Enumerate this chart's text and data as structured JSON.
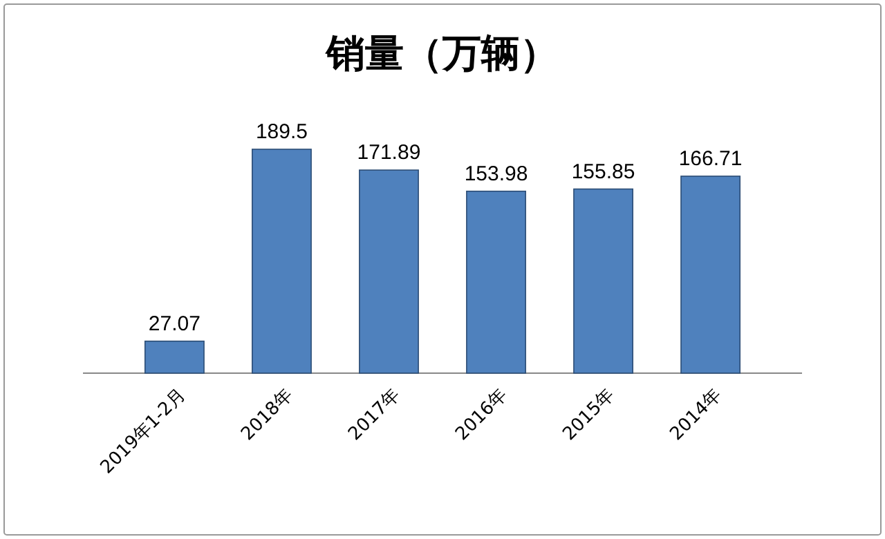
{
  "chart_data": {
    "type": "bar",
    "title": "销量（万辆）",
    "categories": [
      "2019年1-2月",
      "2018年",
      "2017年",
      "2016年",
      "2015年",
      "2014年"
    ],
    "values": [
      27.07,
      189.5,
      171.89,
      153.98,
      155.85,
      166.71
    ],
    "color": "#4f81bd",
    "data_labels": true
  }
}
